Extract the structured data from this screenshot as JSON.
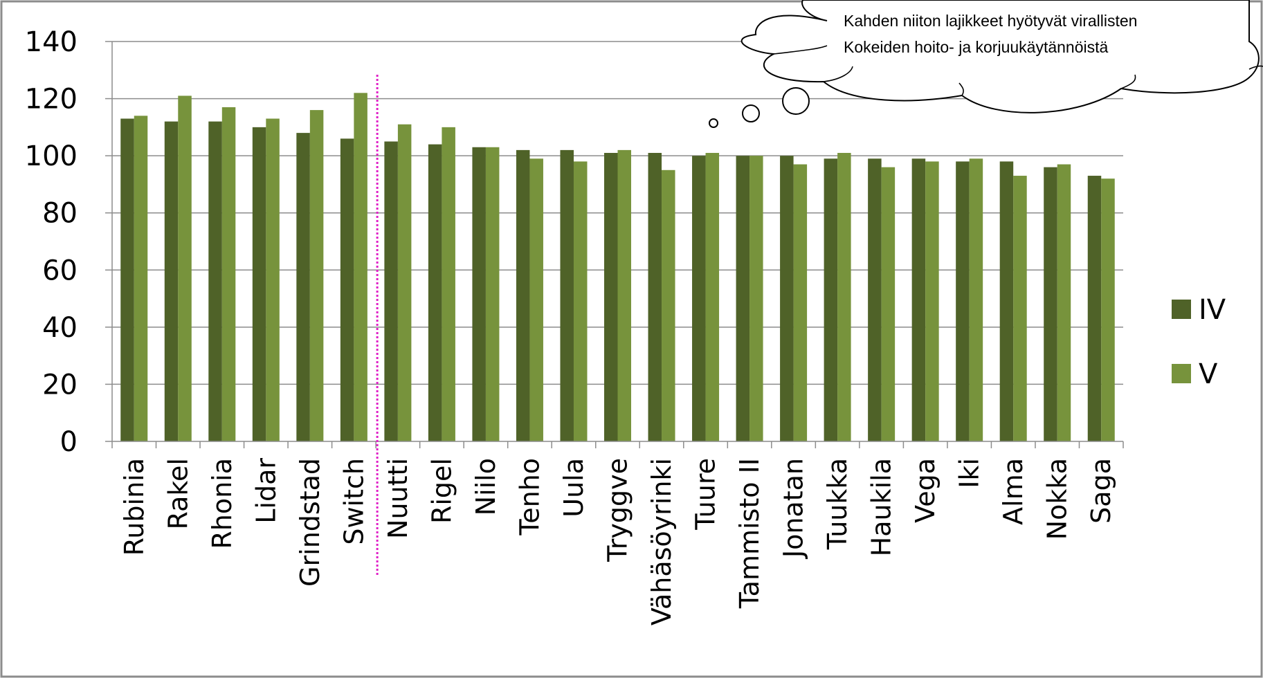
{
  "chart_data": {
    "type": "bar",
    "categories": [
      "Rubinia",
      "Rakel",
      "Rhonia",
      "Lidar",
      "Grindstad",
      "Switch",
      "Nuutti",
      "Rigel",
      "Niilo",
      "Tenho",
      "Uula",
      "Tryggve",
      "Vähäsöyrinki",
      "Tuure",
      "Tammisto II",
      "Jonatan",
      "Tuukka",
      "Haukila",
      "Vega",
      "Iki",
      "Alma",
      "Nokka",
      "Saga"
    ],
    "series": [
      {
        "name": "IV",
        "color": "#4f6228",
        "values": [
          113,
          112,
          112,
          110,
          108,
          106,
          105,
          104,
          103,
          102,
          102,
          101,
          101,
          100,
          100,
          100,
          99,
          99,
          99,
          98,
          98,
          96,
          93
        ]
      },
      {
        "name": "V",
        "color": "#77933c",
        "values": [
          114,
          121,
          117,
          113,
          116,
          122,
          111,
          110,
          103,
          99,
          98,
          102,
          95,
          101,
          100,
          97,
          101,
          96,
          98,
          99,
          93,
          97,
          92
        ]
      }
    ],
    "ylim": [
      0,
      140
    ],
    "yticks": [
      "0",
      "20",
      "40",
      "60",
      "80",
      "100",
      "120",
      "140"
    ],
    "grid": true,
    "legend_position": "right",
    "separator_after_category": "Switch",
    "annotation": {
      "line1": "Kahden niiton lajikkeet  hyötyvät virallisten",
      "line2": "Kokeiden hoito- ja korjuukäytännöistä"
    }
  }
}
